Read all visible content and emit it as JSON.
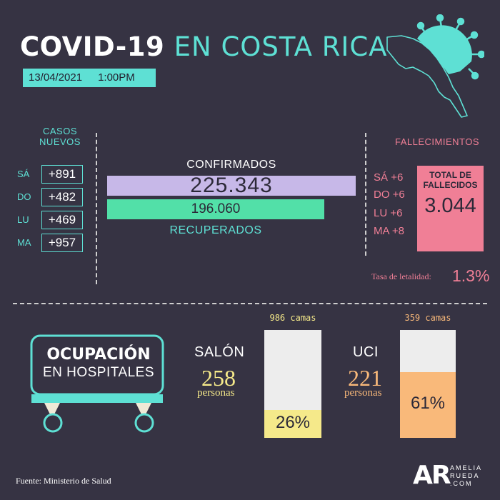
{
  "header": {
    "title_main": "COVID-19",
    "title_accent": "EN COSTA RICA",
    "date": "13/04/2021",
    "time": "1:00PM",
    "colors": {
      "accent": "#5ee0d4",
      "background": "#363343"
    }
  },
  "casos_nuevos": {
    "heading_line1": "CASOS",
    "heading_line2": "NUEVOS",
    "rows": [
      {
        "day": "SÁ",
        "value": "+891"
      },
      {
        "day": "DO",
        "value": "+482"
      },
      {
        "day": "LU",
        "value": "+469"
      },
      {
        "day": "MA",
        "value": "+957"
      }
    ]
  },
  "totals": {
    "confirmados_label": "CONFIRMADOS",
    "confirmados_value": "225.343",
    "recuperados_value": "196.060",
    "recuperados_label": "RECUPERADOS",
    "colors": {
      "confirmados": "#c7b8e8",
      "recuperados": "#52e0a8"
    }
  },
  "fallecimientos": {
    "heading": "FALLECIMIENTOS",
    "rows": [
      {
        "day": "SÁ",
        "value": "+6"
      },
      {
        "day": "DO",
        "value": "+6"
      },
      {
        "day": "LU",
        "value": "+6"
      },
      {
        "day": "MA",
        "value": "+8"
      }
    ],
    "total_label_line1": "TOTAL DE",
    "total_label_line2": "FALLECIDOS",
    "total_value": "3.044",
    "tasa_label": "Tasa de letalidad:",
    "tasa_value": "1.3%",
    "color": "#f07f96"
  },
  "ocupacion": {
    "title_line1": "OCUPACIÓN",
    "title_line2": "EN HOSPITALES",
    "salon": {
      "label": "SALÓN",
      "beds": "986 camas",
      "patients": "258",
      "unit": "personas",
      "percent_label": "26%",
      "occupancy": 0.26,
      "color": "#f5e98a"
    },
    "uci": {
      "label": "UCI",
      "beds": "359 camas",
      "patients": "221",
      "unit": "personas",
      "percent_label": "61%",
      "occupancy": 0.61,
      "color": "#f9b97a"
    }
  },
  "footer": {
    "source": "Fuente: Ministerio de Salud",
    "logo_mark": "AR",
    "logo_line1": "AMELIA",
    "logo_line2": "RUEDA",
    "logo_line3": ".COM"
  }
}
